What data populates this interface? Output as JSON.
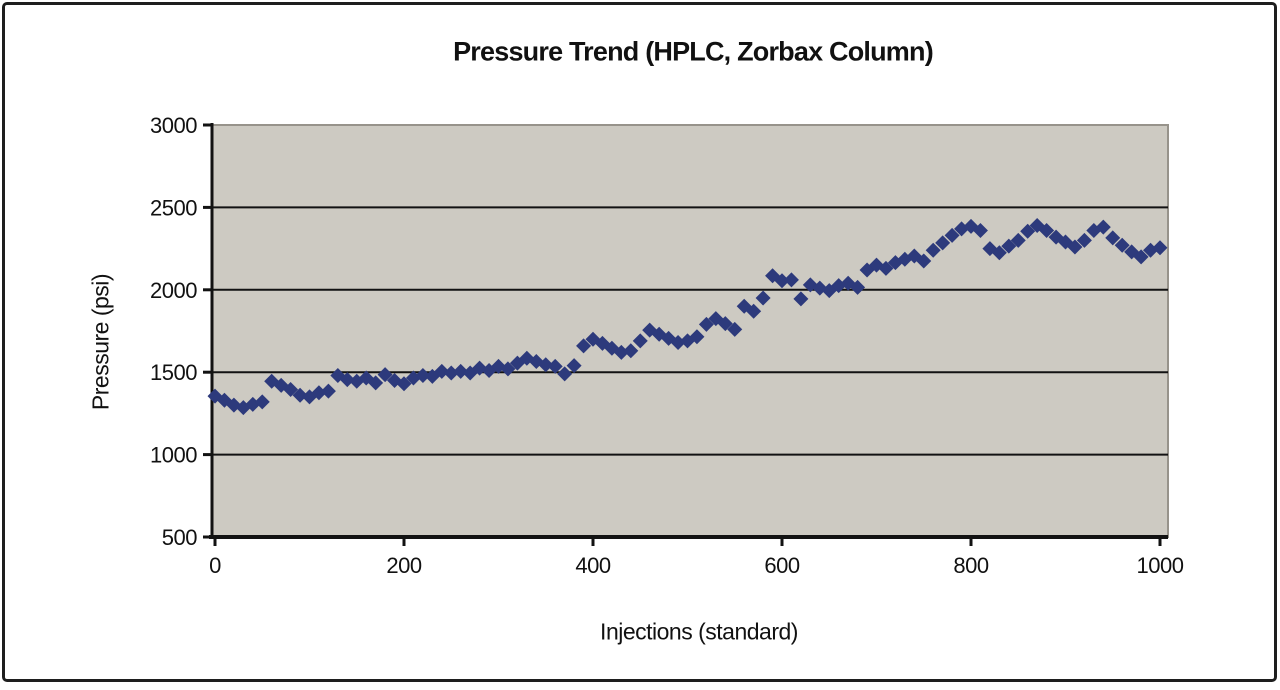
{
  "chart_data": {
    "type": "scatter",
    "title": "Pressure Trend (HPLC, Zorbax Column)",
    "xlabel": "Injections (standard)",
    "ylabel": "Pressure (psi)",
    "xlim": [
      0,
      1010
    ],
    "ylim": [
      500,
      3000
    ],
    "x_ticks": [
      0,
      200,
      400,
      600,
      800,
      1000
    ],
    "y_ticks": [
      500,
      1000,
      1500,
      2000,
      2500,
      3000
    ],
    "grid": "horizontal-only",
    "legend_position": "none",
    "marker_shape": "diamond",
    "colors": {
      "marker": "#2d3a7c",
      "plot_bg": "#cdcac2",
      "plot_border": "#97938b",
      "axis": "#121212",
      "text": "#111111",
      "frame_border": "#1e1e1e",
      "page_bg": "#ffffff"
    },
    "series": [
      {
        "name": "Pressure",
        "points": [
          [
            0,
            1355
          ],
          [
            10,
            1330
          ],
          [
            20,
            1300
          ],
          [
            30,
            1285
          ],
          [
            40,
            1305
          ],
          [
            50,
            1320
          ],
          [
            60,
            1445
          ],
          [
            70,
            1420
          ],
          [
            80,
            1395
          ],
          [
            90,
            1360
          ],
          [
            100,
            1350
          ],
          [
            110,
            1375
          ],
          [
            120,
            1385
          ],
          [
            130,
            1480
          ],
          [
            140,
            1455
          ],
          [
            150,
            1445
          ],
          [
            160,
            1465
          ],
          [
            170,
            1435
          ],
          [
            180,
            1485
          ],
          [
            190,
            1450
          ],
          [
            200,
            1430
          ],
          [
            210,
            1465
          ],
          [
            220,
            1480
          ],
          [
            230,
            1475
          ],
          [
            240,
            1505
          ],
          [
            250,
            1495
          ],
          [
            260,
            1505
          ],
          [
            270,
            1495
          ],
          [
            280,
            1525
          ],
          [
            290,
            1510
          ],
          [
            300,
            1535
          ],
          [
            310,
            1520
          ],
          [
            320,
            1555
          ],
          [
            330,
            1585
          ],
          [
            340,
            1565
          ],
          [
            350,
            1545
          ],
          [
            360,
            1535
          ],
          [
            370,
            1490
          ],
          [
            380,
            1540
          ],
          [
            390,
            1660
          ],
          [
            400,
            1700
          ],
          [
            410,
            1675
          ],
          [
            420,
            1645
          ],
          [
            430,
            1620
          ],
          [
            440,
            1630
          ],
          [
            450,
            1690
          ],
          [
            460,
            1755
          ],
          [
            470,
            1730
          ],
          [
            480,
            1705
          ],
          [
            490,
            1680
          ],
          [
            500,
            1690
          ],
          [
            510,
            1715
          ],
          [
            520,
            1790
          ],
          [
            530,
            1825
          ],
          [
            540,
            1795
          ],
          [
            550,
            1760
          ],
          [
            560,
            1900
          ],
          [
            570,
            1870
          ],
          [
            580,
            1950
          ],
          [
            590,
            2085
          ],
          [
            600,
            2055
          ],
          [
            610,
            2060
          ],
          [
            620,
            1945
          ],
          [
            630,
            2030
          ],
          [
            640,
            2010
          ],
          [
            650,
            1995
          ],
          [
            660,
            2025
          ],
          [
            670,
            2040
          ],
          [
            680,
            2015
          ],
          [
            690,
            2120
          ],
          [
            700,
            2150
          ],
          [
            710,
            2130
          ],
          [
            720,
            2165
          ],
          [
            730,
            2185
          ],
          [
            740,
            2205
          ],
          [
            750,
            2175
          ],
          [
            760,
            2240
          ],
          [
            770,
            2285
          ],
          [
            780,
            2330
          ],
          [
            790,
            2370
          ],
          [
            800,
            2385
          ],
          [
            810,
            2360
          ],
          [
            820,
            2250
          ],
          [
            830,
            2225
          ],
          [
            840,
            2265
          ],
          [
            850,
            2300
          ],
          [
            860,
            2355
          ],
          [
            870,
            2390
          ],
          [
            880,
            2360
          ],
          [
            890,
            2320
          ],
          [
            900,
            2290
          ],
          [
            910,
            2260
          ],
          [
            920,
            2300
          ],
          [
            930,
            2360
          ],
          [
            940,
            2380
          ],
          [
            950,
            2315
          ],
          [
            960,
            2270
          ],
          [
            970,
            2230
          ],
          [
            980,
            2200
          ],
          [
            990,
            2240
          ],
          [
            1000,
            2255
          ]
        ]
      }
    ]
  }
}
